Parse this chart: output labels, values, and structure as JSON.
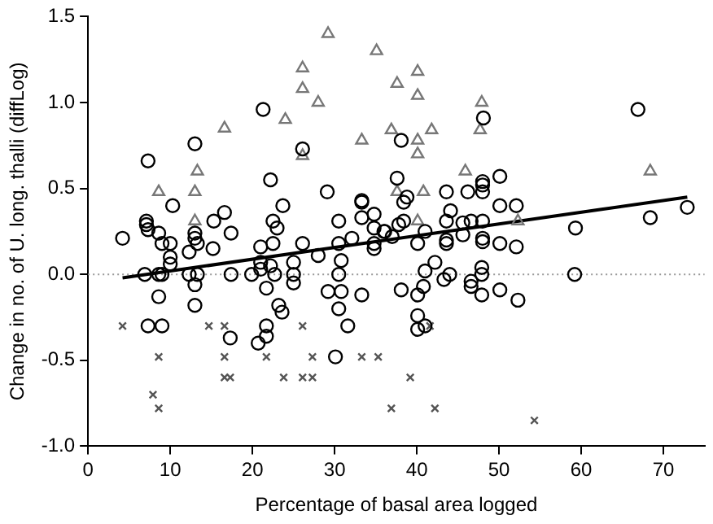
{
  "chart_data": {
    "type": "scatter",
    "xlabel": "Percentage of basal area logged",
    "ylabel": "Change in no. of U. long. thalli (diffLog)",
    "xlim": [
      0,
      75
    ],
    "xticks": [
      0,
      10,
      20,
      30,
      40,
      50,
      60,
      70
    ],
    "ylim": [
      -1,
      1.5
    ],
    "yticks": [
      {
        "value": -1,
        "label": "-1.0"
      },
      -0.5,
      {
        "value": 0,
        "label": "0.0"
      },
      0.5,
      {
        "value": 1,
        "label": "1.0"
      },
      1.5
    ],
    "grid": false,
    "legend": false,
    "ref_lines": [
      {
        "axis": "y",
        "value": 0,
        "color": "#999999",
        "line_style": "dotted"
      }
    ],
    "series": [
      {
        "marker": "circle",
        "color": "#000000",
        "x": [
          21.3,
          13.0,
          7.3,
          22.2,
          10.3,
          23.7,
          29.1,
          16.6,
          7.1,
          7.1,
          7.3,
          8.6,
          4.2,
          9.0,
          10.0,
          13.0,
          13.0,
          13.3,
          15.3,
          17.4,
          12.3,
          15.2,
          22.5,
          23.0,
          21.0,
          22.5,
          26.1,
          30.5,
          33.3,
          33.3,
          33.3,
          34.8,
          34.8,
          36.0,
          30.5,
          32.1,
          34.8,
          66.9,
          48.1,
          26.1,
          37.6,
          48.0,
          48.0,
          48.0,
          50.1,
          43.6,
          46.2,
          38.8,
          38.4,
          44.1,
          50.1,
          52.1,
          38.4,
          37.8,
          36.1,
          37.0,
          43.6,
          45.6,
          46.6,
          48.0,
          41.0,
          40.1,
          43.6,
          43.6,
          45.6,
          48.0,
          48.0,
          50.1,
          52.1,
          59.3,
          68.4,
          72.9,
          34.8,
          38.1,
          10.0,
          10.0,
          6.9,
          8.6,
          9.0,
          12.3,
          13.3,
          8.6,
          13.0,
          13.0,
          7.3,
          9.0,
          17.3,
          17.4,
          19.9,
          21.0,
          21.0,
          21.7,
          22.2,
          22.7,
          23.2,
          23.6,
          21.7,
          21.7,
          20.7,
          25.0,
          25.0,
          25.0,
          28.0,
          29.2,
          30.5,
          30.8,
          30.5,
          30.8,
          31.6,
          30.1,
          33.3,
          59.2,
          38.1,
          40.1,
          40.8,
          41.0,
          42.2,
          43.3,
          44.0,
          46.6,
          46.6,
          47.9,
          47.9,
          47.9,
          50.1,
          52.3,
          40.1,
          40.1,
          41.0
        ],
        "values": [
          0.96,
          0.76,
          0.66,
          0.55,
          0.4,
          0.4,
          0.48,
          0.36,
          0.31,
          0.29,
          0.26,
          0.24,
          0.21,
          0.18,
          0.18,
          0.24,
          0.21,
          0.18,
          0.31,
          0.24,
          0.13,
          0.15,
          0.31,
          0.27,
          0.16,
          0.18,
          0.18,
          0.31,
          0.42,
          0.43,
          0.33,
          0.35,
          0.27,
          0.25,
          0.18,
          0.21,
          0.15,
          0.96,
          0.91,
          0.73,
          0.56,
          0.54,
          0.52,
          0.48,
          0.57,
          0.48,
          0.48,
          0.45,
          0.42,
          0.37,
          0.4,
          0.4,
          0.31,
          0.29,
          0.25,
          0.22,
          0.31,
          0.3,
          0.31,
          0.31,
          0.25,
          0.18,
          0.2,
          0.18,
          0.23,
          0.21,
          0.19,
          0.18,
          0.16,
          0.27,
          0.33,
          0.39,
          0.18,
          0.78,
          0.1,
          0.06,
          0,
          0,
          0,
          0,
          0,
          -0.13,
          -0.06,
          -0.18,
          -0.3,
          -0.3,
          -0.37,
          0,
          0,
          0.07,
          0.03,
          -0.08,
          0.05,
          0,
          -0.18,
          -0.22,
          -0.3,
          -0.36,
          -0.4,
          0,
          -0.05,
          0.07,
          0.11,
          -0.1,
          0,
          -0.1,
          -0.2,
          0.08,
          -0.3,
          -0.48,
          -0.12,
          0,
          -0.09,
          -0.12,
          -0.07,
          0.02,
          0.07,
          -0.03,
          0,
          -0.04,
          -0.07,
          0.04,
          0,
          -0.12,
          -0.09,
          -0.15,
          -0.24,
          -0.32,
          -0.3
        ]
      },
      {
        "marker": "triangle",
        "color": "#777777",
        "x": [
          29.2,
          26.1,
          26.1,
          28.0,
          24.0,
          16.6,
          35.1,
          33.3,
          26.1,
          13.3,
          8.6,
          13.0,
          13.0,
          40.1,
          37.6,
          40.1,
          47.9,
          36.9,
          41.8,
          47.7,
          40.1,
          40.1,
          45.9,
          68.4,
          37.6,
          40.8,
          40.1,
          52.3
        ],
        "values": [
          1.4,
          1.2,
          1.08,
          1.0,
          0.9,
          0.85,
          1.3,
          0.78,
          0.69,
          0.6,
          0.48,
          0.48,
          0.31,
          1.18,
          1.11,
          1.04,
          1.0,
          0.84,
          0.84,
          0.84,
          0.78,
          0.7,
          0.6,
          0.6,
          0.48,
          0.48,
          0.31,
          0.31
        ]
      },
      {
        "marker": "cross",
        "color": "#555555",
        "x": [
          4.2,
          14.7,
          16.6,
          8.6,
          16.6,
          16.6,
          17.3,
          7.9,
          8.6,
          21.7,
          23.8,
          26.1,
          26.1,
          27.3,
          27.3,
          33.3,
          35.3,
          41.6,
          39.2,
          36.9,
          42.2,
          54.3
        ],
        "values": [
          -0.3,
          -0.3,
          -0.3,
          -0.48,
          -0.48,
          -0.6,
          -0.6,
          -0.7,
          -0.78,
          -0.48,
          -0.6,
          -0.3,
          -0.6,
          -0.6,
          -0.48,
          -0.48,
          -0.48,
          -0.3,
          -0.6,
          -0.78,
          -0.78,
          -0.85
        ]
      },
      {
        "type": "line",
        "marker": "none",
        "line_style": "solid",
        "color": "#000000",
        "x": [
          4.2,
          72.9
        ],
        "values": [
          -0.02,
          0.45
        ]
      }
    ]
  }
}
